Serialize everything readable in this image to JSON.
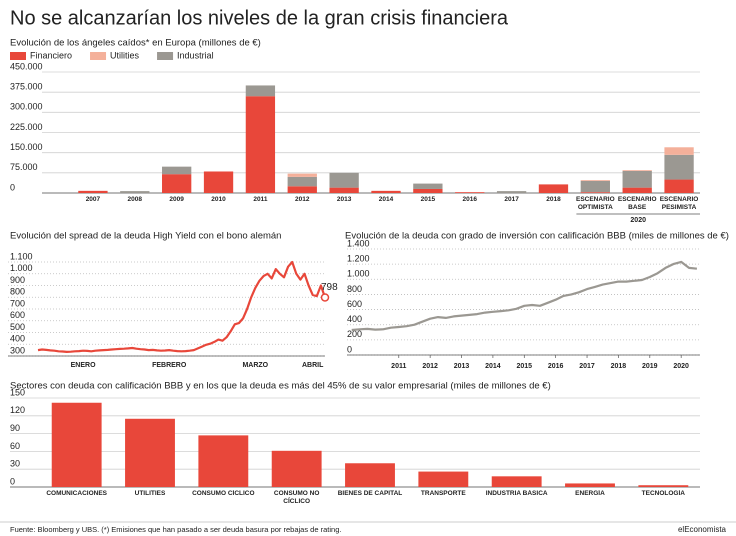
{
  "title": "No se alcanzarían los niveles de la gran crisis financiera",
  "chart_data": [
    {
      "type": "bar",
      "title": "Evolución de los ángeles caídos* en Europa (millones de €)",
      "categories": [
        "2007",
        "2008",
        "2009",
        "2010",
        "2011",
        "2012",
        "2013",
        "2014",
        "2015",
        "2016",
        "2017",
        "2018",
        "ESCENARIO OPTIMISTA",
        "ESCENARIO BASE",
        "ESCENARIO PESIMISTA"
      ],
      "x_group_label": "2020",
      "series": [
        {
          "name": "Financiero",
          "color": "#e8473a",
          "values": [
            8000,
            0,
            70000,
            80000,
            360000,
            25000,
            20000,
            8000,
            15000,
            3000,
            0,
            32000,
            3000,
            20000,
            50000
          ]
        },
        {
          "name": "Industrial",
          "color": "#9b9892",
          "values": [
            0,
            7000,
            28000,
            0,
            40000,
            35000,
            55000,
            0,
            20000,
            0,
            7000,
            0,
            42000,
            62000,
            92000
          ]
        },
        {
          "name": "Utilities",
          "color": "#f4b09a",
          "values": [
            0,
            0,
            0,
            0,
            0,
            12000,
            0,
            0,
            0,
            0,
            0,
            0,
            3000,
            3000,
            28000
          ]
        }
      ],
      "legend_order": [
        "Financiero",
        "Utilities",
        "Industrial"
      ],
      "ylim": [
        0,
        450000
      ],
      "yticks": [
        0,
        {
          "value": 75000,
          "label": "75.000"
        },
        {
          "value": 150000,
          "label": "150.000"
        },
        {
          "value": 225000,
          "label": "225.000"
        },
        {
          "value": 300000,
          "label": "300.000"
        },
        {
          "value": 375000,
          "label": "375.000"
        },
        {
          "value": 450000,
          "label": "450.000"
        }
      ],
      "grid": true
    },
    {
      "type": "line",
      "title": "Evolución del spread de la deuda High Yield con el bono alemán",
      "categories": [
        null,
        null,
        null,
        null,
        null,
        null,
        null,
        null,
        null,
        null,
        null,
        "ENERO",
        null,
        null,
        null,
        null,
        null,
        null,
        null,
        null,
        null,
        null,
        null,
        null,
        null,
        null,
        null,
        null,
        null,
        null,
        null,
        null,
        "FEBRERO",
        null,
        null,
        null,
        null,
        null,
        null,
        null,
        null,
        null,
        null,
        null,
        null,
        null,
        null,
        null,
        null,
        null,
        null,
        null,
        null,
        "MARZO",
        null,
        null,
        null,
        null,
        null,
        null,
        null,
        null,
        null,
        null,
        null,
        null,
        null,
        "ABRIL",
        null,
        null,
        null
      ],
      "series": [
        {
          "name": "High Yield",
          "color": "#e8473a",
          "values": [
            350,
            355,
            352,
            348,
            345,
            340,
            338,
            335,
            337,
            340,
            342,
            345,
            343,
            340,
            345,
            348,
            350,
            352,
            355,
            358,
            360,
            362,
            365,
            368,
            362,
            358,
            355,
            350,
            352,
            348,
            345,
            347,
            350,
            345,
            342,
            340,
            342,
            345,
            350,
            365,
            380,
            395,
            405,
            420,
            440,
            430,
            460,
            510,
            570,
            580,
            620,
            700,
            800,
            880,
            940,
            980,
            1000,
            960,
            1040,
            1000,
            970,
            1060,
            1100,
            1000,
            950,
            1000,
            900,
            820,
            810,
            900,
            798
          ]
        }
      ],
      "show_last_value": true,
      "ylim": [
        300,
        1100
      ],
      "yticks": [
        300,
        400,
        500,
        600,
        700,
        800,
        900,
        {
          "value": 1000,
          "label": "1.000"
        },
        {
          "value": 1100,
          "label": "1.100"
        }
      ],
      "grid": true
    },
    {
      "type": "line",
      "title": "Evolución de la deuda con grado de inversión con calificación BBB (miles de millones de €)",
      "x": [
        2009.5,
        2009.75,
        2010,
        2010.25,
        2010.5,
        2010.75,
        2011,
        2011.25,
        2011.5,
        2011.75,
        2012,
        2012.25,
        2012.5,
        2012.75,
        2013,
        2013.25,
        2013.5,
        2013.75,
        2014,
        2014.25,
        2014.5,
        2014.75,
        2015,
        2015.25,
        2015.5,
        2015.75,
        2016,
        2016.25,
        2016.5,
        2016.75,
        2017,
        2017.25,
        2017.5,
        2017.75,
        2018,
        2018.25,
        2018.5,
        2018.75,
        2019,
        2019.25,
        2019.5,
        2019.75,
        2020,
        2020.25,
        2020.5
      ],
      "series": [
        {
          "name": "BBB",
          "color": "#9b9892",
          "values": [
            330,
            340,
            345,
            335,
            340,
            360,
            370,
            380,
            400,
            440,
            480,
            500,
            490,
            510,
            520,
            530,
            540,
            560,
            570,
            580,
            590,
            610,
            650,
            660,
            650,
            690,
            730,
            780,
            800,
            830,
            870,
            900,
            930,
            950,
            970,
            970,
            980,
            990,
            1030,
            1080,
            1150,
            1200,
            1230,
            1150,
            1140
          ]
        }
      ],
      "xlim": [
        2009.35,
        2020.6
      ],
      "xticks": [
        2011,
        2012,
        2013,
        2014,
        2015,
        2016,
        2017,
        2018,
        2019,
        2020
      ],
      "ylim": [
        0,
        1400
      ],
      "yticks": [
        0,
        200,
        400,
        600,
        800,
        {
          "value": 1000,
          "label": "1.000"
        },
        {
          "value": 1200,
          "label": "1.200"
        },
        {
          "value": 1400,
          "label": "1.400"
        }
      ],
      "grid": true
    },
    {
      "type": "bar",
      "title": "Sectores con deuda con calificación BBB y en los que la deuda es más del 45% de su valor empresarial (miles de millones de €)",
      "categories": [
        "COMUNICACIONES",
        "UTILITIES",
        "CONSUMO CÍCLICO",
        "CONSUMO NO CÍCLICO",
        "BIENES DE CAPITAL",
        "TRANSPORTE",
        "INDUSTRIA BÁSICA",
        "ENERGÍA",
        "TECNOLOGÍA"
      ],
      "values": [
        142,
        115,
        87,
        61,
        40,
        26,
        18,
        6,
        3
      ],
      "color": "#e8473a",
      "ylim": [
        0,
        150
      ],
      "yticks": [
        0,
        30,
        60,
        90,
        120,
        150
      ],
      "grid": true
    }
  ],
  "footer": {
    "source": "Fuente: Bloomberg y UBS. (*) Emisiones que han pasado a ser deuda basura por rebajas de rating.",
    "brand": "elEconomista"
  }
}
